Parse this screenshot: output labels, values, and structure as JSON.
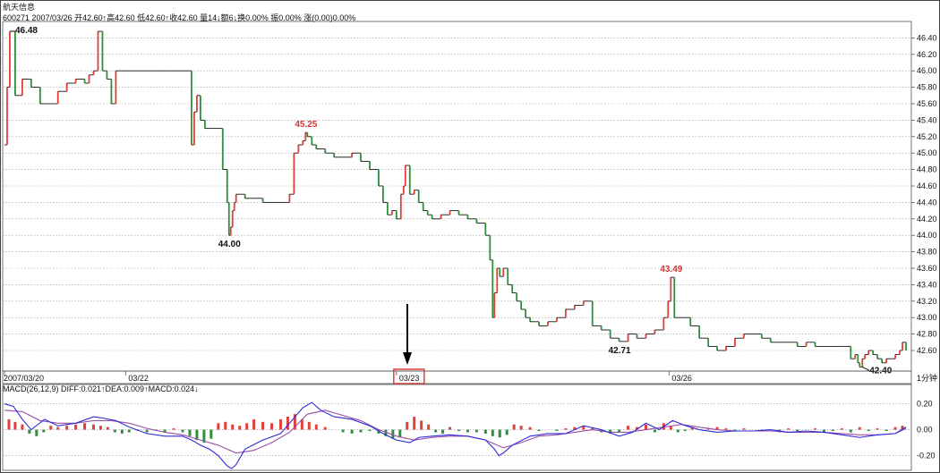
{
  "header": {
    "stock_name": "航天信息",
    "quote_line": "600271 2007/03/26 开42.60↑高42.60 低42.60↑收42.60 量14↓额6↓换0.00% 振0.00% 涨(0.00)0.00%"
  },
  "interval_label": "1分钟",
  "colors": {
    "up": "#e0403a",
    "down": "#2f8f3a",
    "flat": "#111111",
    "diff_line": "#2b2bd6",
    "dea_line": "#9b4da8",
    "highlight_box": "#d9342b",
    "annotation_red": "#d93333"
  },
  "chart_data": {
    "type": "line",
    "series": [
      {
        "name": "航天信息",
        "x": [
          0,
          3,
          6,
          12,
          20,
          30,
          40,
          50,
          60,
          70,
          80,
          90,
          95,
          100,
          105,
          110,
          115,
          120,
          125,
          130,
          140,
          150,
          160,
          170,
          180,
          190,
          200,
          207,
          210,
          213,
          216,
          220,
          225,
          230,
          235,
          240,
          245,
          250,
          252,
          254,
          256,
          258,
          260,
          265,
          270,
          280,
          290,
          300,
          310,
          320,
          325,
          330,
          335,
          338,
          340,
          345,
          350,
          360,
          370,
          380,
          390,
          400,
          410,
          420,
          425,
          430,
          435,
          440,
          445,
          448,
          450,
          455,
          460,
          465,
          470,
          475,
          480,
          490,
          500,
          510,
          520,
          530,
          540,
          545,
          548,
          550,
          553,
          556,
          560,
          565,
          570,
          575,
          580,
          585,
          590,
          600,
          610,
          620,
          630,
          640,
          650,
          660,
          670,
          680,
          690,
          700,
          710,
          720,
          730,
          740,
          745,
          748,
          752,
          760,
          770,
          780,
          790,
          800,
          810,
          820,
          830,
          840,
          850,
          860,
          870,
          880,
          890,
          900,
          910,
          920,
          930,
          940,
          950,
          955,
          958,
          960,
          963,
          966,
          970,
          975,
          980,
          985,
          990,
          1000,
          1005,
          1008,
          1012
        ],
        "values": [
          45.1,
          45.8,
          46.48,
          45.7,
          45.9,
          45.8,
          45.6,
          45.6,
          45.75,
          45.85,
          45.9,
          45.85,
          45.95,
          46.0,
          46.48,
          46.0,
          45.9,
          45.6,
          46.0,
          46.0,
          46.0,
          46.0,
          46.0,
          46.0,
          46.0,
          46.0,
          46.0,
          46.0,
          45.1,
          45.5,
          45.7,
          45.4,
          45.3,
          45.3,
          45.3,
          45.3,
          44.8,
          44.4,
          44.0,
          44.1,
          44.3,
          44.4,
          44.5,
          44.5,
          44.45,
          44.45,
          44.4,
          44.4,
          44.4,
          44.5,
          45.0,
          45.1,
          45.15,
          45.25,
          45.2,
          45.1,
          45.05,
          45.0,
          44.95,
          44.95,
          45.0,
          44.9,
          44.8,
          44.6,
          44.4,
          44.25,
          44.3,
          44.2,
          44.5,
          44.6,
          44.85,
          44.5,
          44.55,
          44.4,
          44.3,
          44.25,
          44.2,
          44.25,
          44.3,
          44.25,
          44.2,
          44.15,
          44.0,
          43.7,
          43.0,
          43.3,
          43.6,
          43.5,
          43.6,
          43.4,
          43.3,
          43.2,
          43.1,
          43.0,
          42.95,
          42.9,
          42.95,
          43.0,
          43.1,
          43.15,
          43.2,
          42.9,
          42.85,
          42.75,
          42.71,
          42.8,
          42.75,
          42.8,
          42.85,
          43.0,
          43.2,
          43.49,
          43.0,
          43.0,
          42.9,
          42.75,
          42.65,
          42.6,
          42.65,
          42.75,
          42.8,
          42.8,
          42.75,
          42.7,
          42.7,
          42.7,
          42.65,
          42.7,
          42.65,
          42.65,
          42.65,
          42.65,
          42.5,
          42.55,
          42.45,
          42.4,
          42.5,
          42.55,
          42.6,
          42.55,
          42.5,
          42.45,
          42.5,
          42.55,
          42.6,
          42.7,
          42.6
        ]
      }
    ],
    "annotations": [
      {
        "text": "46.48",
        "x": 6,
        "y": 46.48,
        "color": "#111111"
      },
      {
        "text": "45.25",
        "x": 338,
        "y": 45.25,
        "color": "#d93333"
      },
      {
        "text": "44.00",
        "x": 252,
        "y": 44.0,
        "color": "#111111"
      },
      {
        "text": "43.49",
        "x": 748,
        "y": 43.49,
        "color": "#d93333"
      },
      {
        "text": "42.71",
        "x": 690,
        "y": 42.71,
        "color": "#111111"
      },
      {
        "text": "42.40",
        "x": 963,
        "y": 42.4,
        "color": "#111111"
      }
    ],
    "ylim": [
      42.35,
      46.6
    ],
    "xlim": [
      0,
      1015
    ],
    "yticks": [
      "46.40",
      "46.20",
      "46.00",
      "45.80",
      "45.60",
      "45.40",
      "45.20",
      "45.00",
      "44.80",
      "44.60",
      "44.40",
      "44.20",
      "44.00",
      "43.80",
      "43.60",
      "43.40",
      "43.20",
      "43.00",
      "42.80",
      "42.60"
    ],
    "xtick_labels": [
      {
        "text": "2007/03/20",
        "x": 0
      },
      {
        "text": "03/22",
        "x": 136
      },
      {
        "text": "03/23",
        "x": 440,
        "highlighted": true
      },
      {
        "text": "03/26",
        "x": 746
      }
    ],
    "grid": true,
    "macd": {
      "title": "MACD(26,12,9) DIFF:0.021↑DEA:0.009↑MACD:0.024↓",
      "ylim": [
        -0.3,
        0.28
      ],
      "yticks": [
        "0.20",
        "0.00",
        "-0.20"
      ],
      "diff": {
        "x": [
          0,
          10,
          20,
          30,
          45,
          60,
          80,
          100,
          110,
          125,
          140,
          160,
          180,
          200,
          210,
          220,
          230,
          240,
          250,
          255,
          260,
          270,
          290,
          310,
          320,
          335,
          345,
          355,
          370,
          390,
          410,
          425,
          440,
          455,
          465,
          480,
          500,
          520,
          540,
          550,
          555,
          560,
          570,
          590,
          610,
          630,
          650,
          670,
          690,
          705,
          720,
          735,
          750,
          765,
          780,
          800,
          820,
          840,
          860,
          880,
          900,
          920,
          940,
          960,
          980,
          1000,
          1012
        ],
        "values": [
          0.2,
          0.18,
          0.08,
          0.0,
          0.08,
          0.03,
          0.05,
          0.1,
          0.09,
          0.07,
          0.02,
          -0.03,
          -0.05,
          -0.05,
          -0.08,
          -0.12,
          -0.15,
          -0.2,
          -0.28,
          -0.3,
          -0.27,
          -0.15,
          -0.08,
          -0.03,
          0.05,
          0.17,
          0.21,
          0.15,
          0.1,
          0.08,
          0.03,
          -0.03,
          -0.08,
          -0.1,
          -0.06,
          -0.05,
          -0.04,
          -0.05,
          -0.08,
          -0.15,
          -0.2,
          -0.18,
          -0.12,
          -0.05,
          -0.03,
          -0.03,
          0.03,
          0.0,
          -0.05,
          -0.02,
          0.05,
          0.0,
          0.07,
          0.03,
          0.0,
          -0.02,
          -0.01,
          -0.01,
          0.0,
          -0.02,
          -0.01,
          -0.02,
          -0.04,
          -0.06,
          -0.04,
          -0.03,
          0.02
        ]
      },
      "dea": {
        "x": [
          0,
          20,
          40,
          60,
          80,
          100,
          120,
          140,
          160,
          180,
          200,
          220,
          240,
          260,
          280,
          300,
          320,
          340,
          360,
          380,
          400,
          420,
          440,
          460,
          480,
          500,
          520,
          540,
          560,
          580,
          600,
          620,
          640,
          660,
          680,
          700,
          720,
          740,
          760,
          780,
          800,
          820,
          840,
          860,
          880,
          900,
          920,
          940,
          960,
          980,
          1000,
          1012
        ],
        "values": [
          0.15,
          0.14,
          0.07,
          0.05,
          0.05,
          0.07,
          0.07,
          0.05,
          0.01,
          -0.02,
          -0.04,
          -0.08,
          -0.12,
          -0.18,
          -0.16,
          -0.1,
          -0.02,
          0.12,
          0.15,
          0.11,
          0.07,
          0.0,
          -0.05,
          -0.08,
          -0.06,
          -0.05,
          -0.05,
          -0.08,
          -0.14,
          -0.1,
          -0.05,
          -0.04,
          -0.02,
          0.0,
          -0.02,
          -0.02,
          0.0,
          0.02,
          0.04,
          0.02,
          0.0,
          -0.01,
          -0.01,
          -0.01,
          -0.02,
          -0.02,
          -0.02,
          -0.03,
          -0.04,
          -0.04,
          -0.03,
          0.01
        ]
      },
      "bars": {
        "x": [
          5,
          12,
          20,
          28,
          36,
          44,
          52,
          60,
          70,
          80,
          90,
          100,
          108,
          116,
          124,
          132,
          140,
          150,
          160,
          170,
          180,
          190,
          200,
          208,
          216,
          224,
          232,
          240,
          248,
          256,
          264,
          272,
          280,
          290,
          300,
          310,
          318,
          326,
          334,
          342,
          350,
          360,
          370,
          380,
          390,
          400,
          410,
          420,
          428,
          436,
          444,
          452,
          460,
          468,
          476,
          484,
          492,
          500,
          510,
          520,
          530,
          540,
          548,
          556,
          564,
          572,
          580,
          590,
          600,
          610,
          620,
          630,
          640,
          650,
          660,
          670,
          680,
          690,
          700,
          710,
          720,
          730,
          740,
          748,
          756,
          764,
          772,
          780,
          790,
          800,
          810,
          820,
          830,
          840,
          850,
          860,
          870,
          880,
          890,
          900,
          910,
          920,
          930,
          940,
          950,
          960,
          970,
          980,
          990,
          1000,
          1008
        ],
        "values": [
          0.08,
          0.06,
          0.04,
          -0.03,
          -0.05,
          -0.02,
          0.03,
          0.02,
          0.03,
          0.04,
          0.05,
          0.04,
          0.03,
          0.02,
          -0.02,
          -0.03,
          -0.02,
          -0.01,
          -0.02,
          -0.01,
          -0.02,
          0.01,
          -0.02,
          -0.05,
          -0.08,
          -0.1,
          -0.07,
          0.05,
          0.06,
          0.04,
          0.03,
          0.05,
          0.08,
          0.06,
          0.05,
          0.08,
          0.1,
          0.12,
          0.08,
          0.06,
          0.04,
          0.02,
          0.0,
          -0.02,
          -0.03,
          -0.02,
          -0.01,
          -0.03,
          -0.05,
          -0.07,
          -0.06,
          0.06,
          0.1,
          0.07,
          0.04,
          -0.02,
          -0.03,
          0.02,
          -0.01,
          -0.02,
          -0.02,
          -0.03,
          -0.05,
          -0.06,
          -0.04,
          0.04,
          0.03,
          0.02,
          -0.01,
          0.0,
          -0.01,
          0.01,
          0.02,
          0.03,
          0.01,
          -0.02,
          -0.03,
          -0.02,
          0.03,
          0.02,
          0.04,
          -0.02,
          0.05,
          0.03,
          -0.02,
          -0.01,
          0.02,
          0.0,
          0.01,
          0.02,
          0.01,
          -0.01,
          0.01,
          0.0,
          -0.01,
          0.0,
          -0.02,
          0.01,
          -0.01,
          0.0,
          0.01,
          -0.02,
          -0.01,
          0.01,
          -0.02,
          0.02,
          -0.01,
          0.01,
          -0.01,
          0.02,
          0.03
        ]
      }
    }
  }
}
